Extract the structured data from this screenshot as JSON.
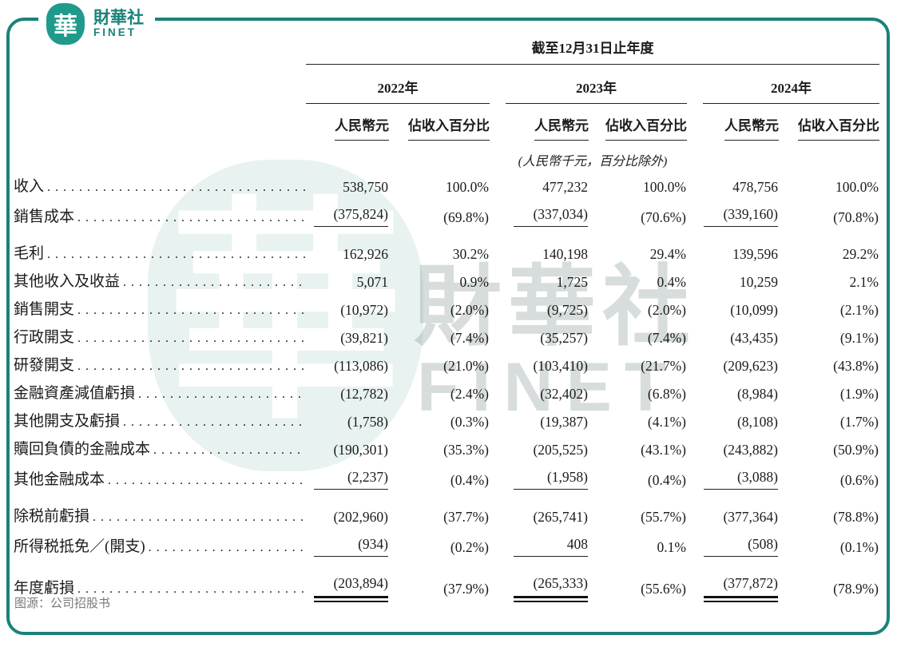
{
  "brand": {
    "badge_glyph": "華",
    "name_cn": "財華社",
    "name_en": "FINET"
  },
  "watermark": {
    "glyph": "華",
    "text_cn": "財華社",
    "text_en": "FINET"
  },
  "colors": {
    "frame_teal": "#1a8278",
    "logo_teal": "#1f9a8b",
    "text_black": "#1b1b1b",
    "source_gray": "#787878"
  },
  "table": {
    "period_header": "截至12月31日止年度",
    "year_groups": [
      {
        "year": "2022年"
      },
      {
        "year": "2023年"
      },
      {
        "year": "2024年"
      }
    ],
    "sub_header_amount": "人民幣元",
    "sub_header_percent": "佔收入百分比",
    "unit_note": "(人民幣千元，百分比除外)",
    "rows": [
      {
        "label": "收入",
        "values": [
          "538,750",
          "100.0%",
          "477,232",
          "100.0%",
          "478,756",
          "100.0%"
        ],
        "rule": "none",
        "spacer_before": false
      },
      {
        "label": "銷售成本",
        "values": [
          "(375,824)",
          "(69.8%)",
          "(337,034)",
          "(70.6%)",
          "(339,160)",
          "(70.8%)"
        ],
        "rule": "single",
        "spacer_before": false
      },
      {
        "label": "毛利",
        "values": [
          "162,926",
          "30.2%",
          "140,198",
          "29.4%",
          "139,596",
          "29.2%"
        ],
        "rule": "none",
        "spacer_before": true
      },
      {
        "label": "其他收入及收益",
        "values": [
          "5,071",
          "0.9%",
          "1,725",
          "0.4%",
          "10,259",
          "2.1%"
        ],
        "rule": "none",
        "spacer_before": false
      },
      {
        "label": "銷售開支",
        "values": [
          "(10,972)",
          "(2.0%)",
          "(9,725)",
          "(2.0%)",
          "(10,099)",
          "(2.1%)"
        ],
        "rule": "none",
        "spacer_before": false
      },
      {
        "label": "行政開支",
        "values": [
          "(39,821)",
          "(7.4%)",
          "(35,257)",
          "(7.4%)",
          "(43,435)",
          "(9.1%)"
        ],
        "rule": "none",
        "spacer_before": false
      },
      {
        "label": "研發開支",
        "values": [
          "(113,086)",
          "(21.0%)",
          "(103,410)",
          "(21.7%)",
          "(209,623)",
          "(43.8%)"
        ],
        "rule": "none",
        "spacer_before": false
      },
      {
        "label": "金融資產減值虧損",
        "values": [
          "(12,782)",
          "(2.4%)",
          "(32,402)",
          "(6.8%)",
          "(8,984)",
          "(1.9%)"
        ],
        "rule": "none",
        "spacer_before": false
      },
      {
        "label": "其他開支及虧損",
        "values": [
          "(1,758)",
          "(0.3%)",
          "(19,387)",
          "(4.1%)",
          "(8,108)",
          "(1.7%)"
        ],
        "rule": "none",
        "spacer_before": false
      },
      {
        "label": "贖回負債的金融成本",
        "values": [
          "(190,301)",
          "(35.3%)",
          "(205,525)",
          "(43.1%)",
          "(243,882)",
          "(50.9%)"
        ],
        "rule": "none",
        "spacer_before": false
      },
      {
        "label": "其他金融成本",
        "values": [
          "(2,237)",
          "(0.4%)",
          "(1,958)",
          "(0.4%)",
          "(3,088)",
          "(0.6%)"
        ],
        "rule": "single",
        "spacer_before": false
      },
      {
        "label": "除税前虧損",
        "values": [
          "(202,960)",
          "(37.7%)",
          "(265,741)",
          "(55.7%)",
          "(377,364)",
          "(78.8%)"
        ],
        "rule": "none",
        "spacer_before": true
      },
      {
        "label": "所得税抵免／(開支)",
        "values": [
          "(934)",
          "(0.2%)",
          "408",
          "0.1%",
          "(508)",
          "(0.1%)"
        ],
        "rule": "single",
        "spacer_before": false
      },
      {
        "label": "年度虧損",
        "values": [
          "(203,894)",
          "(37.9%)",
          "(265,333)",
          "(55.6%)",
          "(377,872)",
          "(78.9%)"
        ],
        "rule": "double",
        "spacer_before": true
      }
    ]
  },
  "footer": {
    "source": "图源：公司招股书"
  }
}
